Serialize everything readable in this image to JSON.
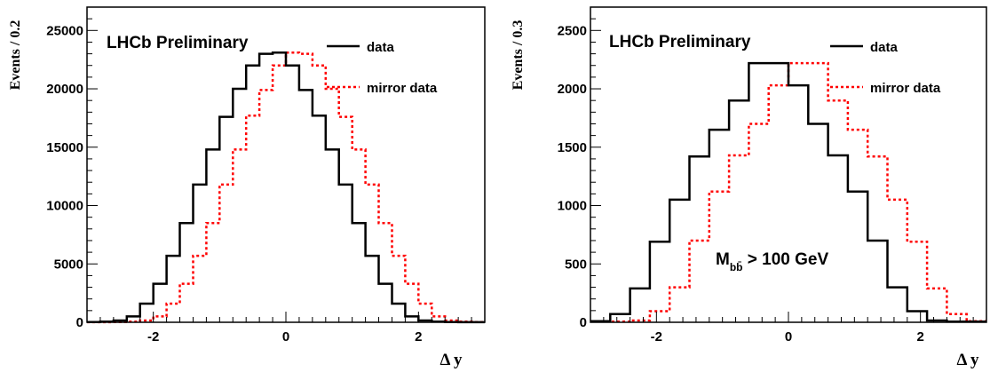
{
  "chart_data": [
    {
      "type": "histogram",
      "annotation": "LHCb Preliminary",
      "xlabel": "Δ y",
      "ylabel": "Events / 0.2",
      "xlim": [
        -3,
        3
      ],
      "ylim": [
        0,
        27000
      ],
      "xticks": [
        -2,
        0,
        2
      ],
      "xtick_labels": [
        "-2",
        "0",
        "2"
      ],
      "yticks": [
        0,
        5000,
        10000,
        15000,
        20000,
        25000
      ],
      "ytick_labels": [
        "0",
        "5000",
        "10000",
        "15000",
        "20000",
        "25000"
      ],
      "bin_edges": [
        -3.0,
        -2.8,
        -2.6,
        -2.4,
        -2.2,
        -2.0,
        -1.8,
        -1.6,
        -1.4,
        -1.2,
        -1.0,
        -0.8,
        -0.6,
        -0.4,
        -0.2,
        0.0,
        0.2,
        0.4,
        0.6,
        0.8,
        1.0,
        1.2,
        1.4,
        1.6,
        1.8,
        2.0,
        2.2,
        2.4,
        2.6,
        2.8,
        3.0
      ],
      "legend": {
        "position": "top-right"
      },
      "series": [
        {
          "name": "data",
          "style": "solid",
          "color": "#000000",
          "values": [
            20,
            60,
            150,
            500,
            1600,
            3300,
            5700,
            8500,
            11800,
            14800,
            17600,
            20000,
            22000,
            23000,
            23100,
            22000,
            19900,
            17700,
            14800,
            11800,
            8500,
            5700,
            3300,
            1600,
            500,
            150,
            60,
            20,
            10,
            5
          ]
        },
        {
          "name": "mirror data",
          "style": "dotted",
          "color": "#ff0000",
          "values": [
            5,
            10,
            20,
            60,
            150,
            500,
            1600,
            3300,
            5700,
            8500,
            11800,
            14800,
            17700,
            19900,
            22000,
            23100,
            23000,
            22000,
            20000,
            17600,
            14800,
            11800,
            8500,
            5700,
            3300,
            1600,
            500,
            150,
            60,
            20
          ]
        }
      ]
    },
    {
      "type": "histogram",
      "annotation": "LHCb Preliminary",
      "cut_label": {
        "main": "M",
        "sub": "bb̄",
        "rest": " > 100 GeV"
      },
      "xlabel": "Δ y",
      "ylabel": "Events / 0.3",
      "xlim": [
        -3,
        3
      ],
      "ylim": [
        0,
        2700
      ],
      "xticks": [
        -2,
        0,
        2
      ],
      "xtick_labels": [
        "-2",
        "0",
        "2"
      ],
      "yticks": [
        0,
        500,
        1000,
        1500,
        2000,
        2500
      ],
      "ytick_labels": [
        "0",
        "500",
        "1000",
        "1500",
        "2000",
        "2500"
      ],
      "bin_edges": [
        -3.0,
        -2.7,
        -2.4,
        -2.1,
        -1.8,
        -1.5,
        -1.2,
        -0.9,
        -0.6,
        -0.3,
        0.0,
        0.3,
        0.6,
        0.9,
        1.2,
        1.5,
        1.8,
        2.1,
        2.4,
        2.7,
        3.0
      ],
      "legend": {
        "position": "top-right"
      },
      "series": [
        {
          "name": "data",
          "style": "solid",
          "color": "#000000",
          "values": [
            10,
            70,
            290,
            690,
            1050,
            1420,
            1650,
            1900,
            2220,
            2220,
            2030,
            1700,
            1430,
            1120,
            700,
            300,
            95,
            15,
            5,
            5
          ]
        },
        {
          "name": "mirror data",
          "style": "dotted",
          "color": "#ff0000",
          "values": [
            5,
            5,
            15,
            95,
            300,
            700,
            1120,
            1430,
            1700,
            2030,
            2220,
            2220,
            1900,
            1650,
            1420,
            1050,
            690,
            290,
            70,
            10
          ]
        }
      ]
    }
  ]
}
